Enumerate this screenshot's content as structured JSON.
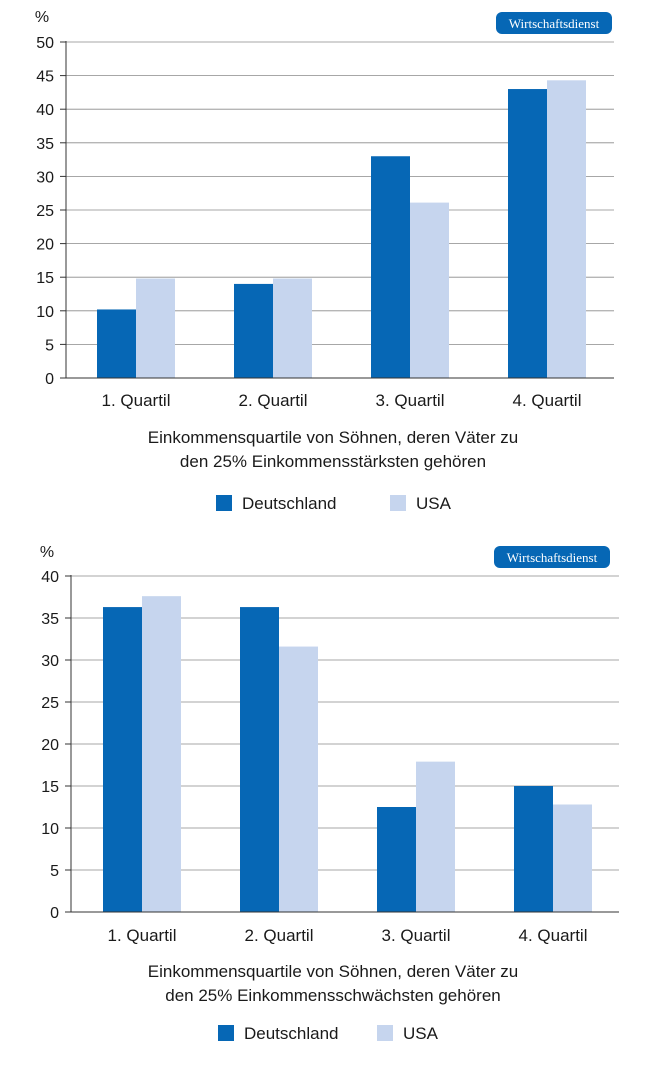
{
  "brand": "Wirtschaftsdienst",
  "colors": {
    "deutschland": "#0667b5",
    "usa": "#c6d5ee",
    "badge": "#0667b5",
    "grid": "#8a8a8a",
    "axis": "#333333"
  },
  "chart_data": [
    {
      "type": "bar",
      "unit_label": "%",
      "categories": [
        "1. Quartil",
        "2. Quartil",
        "3. Quartil",
        "4. Quartil"
      ],
      "series": [
        {
          "name": "Deutschland",
          "values": [
            10.2,
            14.0,
            33.0,
            43.0
          ]
        },
        {
          "name": "USA",
          "values": [
            14.8,
            14.8,
            26.1,
            44.3
          ]
        }
      ],
      "ylim": [
        0,
        50
      ],
      "yticks": [
        0,
        5,
        10,
        15,
        20,
        25,
        30,
        35,
        40,
        45,
        50
      ],
      "xlabel_lines": [
        "Einkommensquartile von Söhnen, deren Väter zu",
        "den 25% Einkommensstärksten gehören"
      ],
      "legend": [
        "Deutschland",
        "USA"
      ],
      "grid": true
    },
    {
      "type": "bar",
      "unit_label": "%",
      "categories": [
        "1. Quartil",
        "2. Quartil",
        "3. Quartil",
        "4. Quartil"
      ],
      "series": [
        {
          "name": "Deutschland",
          "values": [
            36.3,
            36.3,
            12.5,
            15.0
          ]
        },
        {
          "name": "USA",
          "values": [
            37.6,
            31.6,
            17.9,
            12.8
          ]
        }
      ],
      "ylim": [
        0,
        40
      ],
      "yticks": [
        0,
        5,
        10,
        15,
        20,
        25,
        30,
        35,
        40
      ],
      "xlabel_lines": [
        "Einkommensquartile von Söhnen, deren Väter zu",
        "den 25% Einkommensschwächsten gehören"
      ],
      "legend": [
        "Deutschland",
        "USA"
      ],
      "grid": true
    }
  ]
}
